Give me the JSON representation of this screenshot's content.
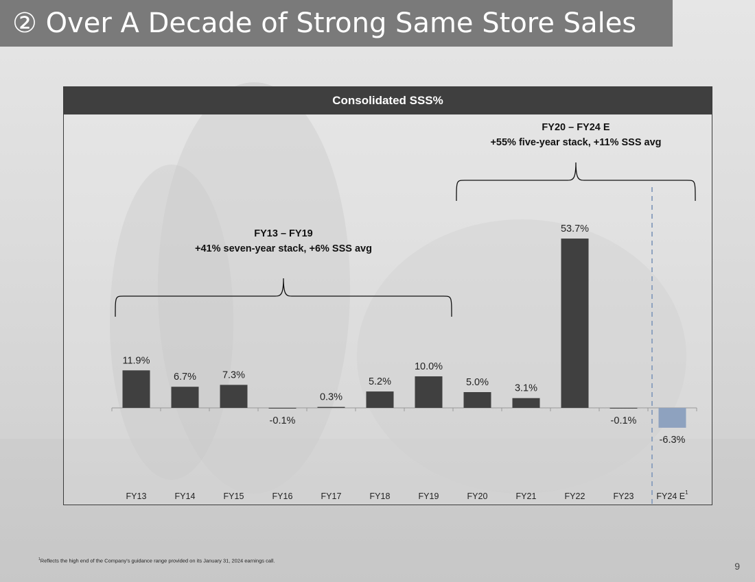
{
  "slide": {
    "title": "② Over A Decade of Strong Same Store Sales",
    "footnote_mark": "1",
    "footnote": "Reflects the high end of the Company's guidance range provided on its January 31, 2024 earnings call.",
    "page_number": "9"
  },
  "chart_data": {
    "type": "bar",
    "title": "Consolidated SSS%",
    "categories": [
      "FY13",
      "FY14",
      "FY15",
      "FY16",
      "FY17",
      "FY18",
      "FY19",
      "FY20",
      "FY21",
      "FY22",
      "FY23",
      "FY24 E"
    ],
    "values": [
      11.9,
      6.7,
      7.3,
      -0.1,
      0.3,
      5.2,
      10.0,
      5.0,
      3.1,
      53.7,
      -0.1,
      -6.3
    ],
    "value_labels": [
      "11.9%",
      "6.7%",
      "7.3%",
      "-0.1%",
      "0.3%",
      "5.2%",
      "10.0%",
      "5.0%",
      "3.1%",
      "53.7%",
      "-0.1%",
      "-6.3%"
    ],
    "category_superscripts": {
      "FY24 E": "1"
    },
    "highlight_category": "FY24 E",
    "colors": {
      "bar": "#404040",
      "highlight_bar": "#8ea2bf",
      "divider": "#8ea2bf"
    },
    "xlabel": "",
    "ylabel": "",
    "ylim": [
      -25,
      62
    ],
    "grid": false,
    "annotations": [
      {
        "name": "group-fy13-fy19",
        "line1": "FY13 – FY19",
        "line2": "+41% seven-year stack, +6% SSS avg",
        "start": "FY13",
        "end": "FY19"
      },
      {
        "name": "group-fy20-fy24",
        "line1": "FY20 – FY24 E",
        "line2": "+55% five-year stack, +11% SSS avg",
        "start": "FY20",
        "end": "FY24 E"
      }
    ]
  }
}
